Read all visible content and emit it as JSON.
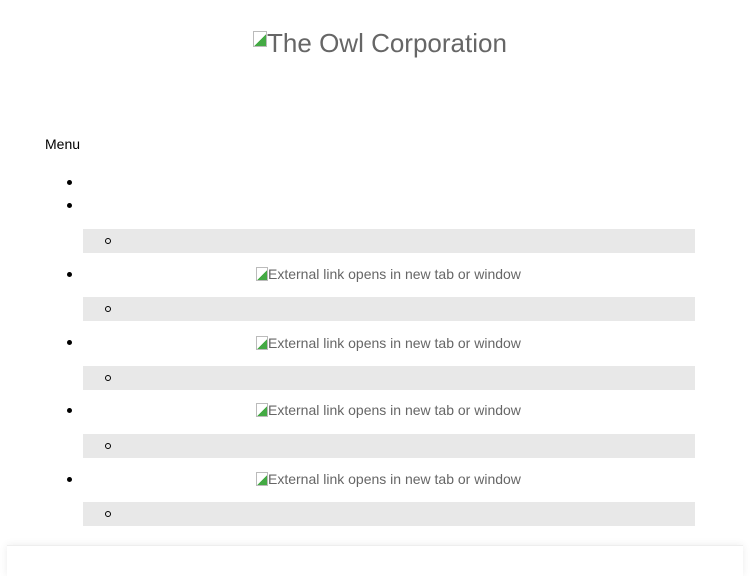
{
  "header": {
    "logo_alt": "The Owl Corporation"
  },
  "menu": {
    "label": "Menu",
    "external_links": [
      {
        "alt": "External link opens in new tab or window"
      },
      {
        "alt": "External link opens in new tab or window"
      },
      {
        "alt": "External link opens in new tab or window"
      },
      {
        "alt": "External link opens in new tab or window"
      }
    ]
  }
}
